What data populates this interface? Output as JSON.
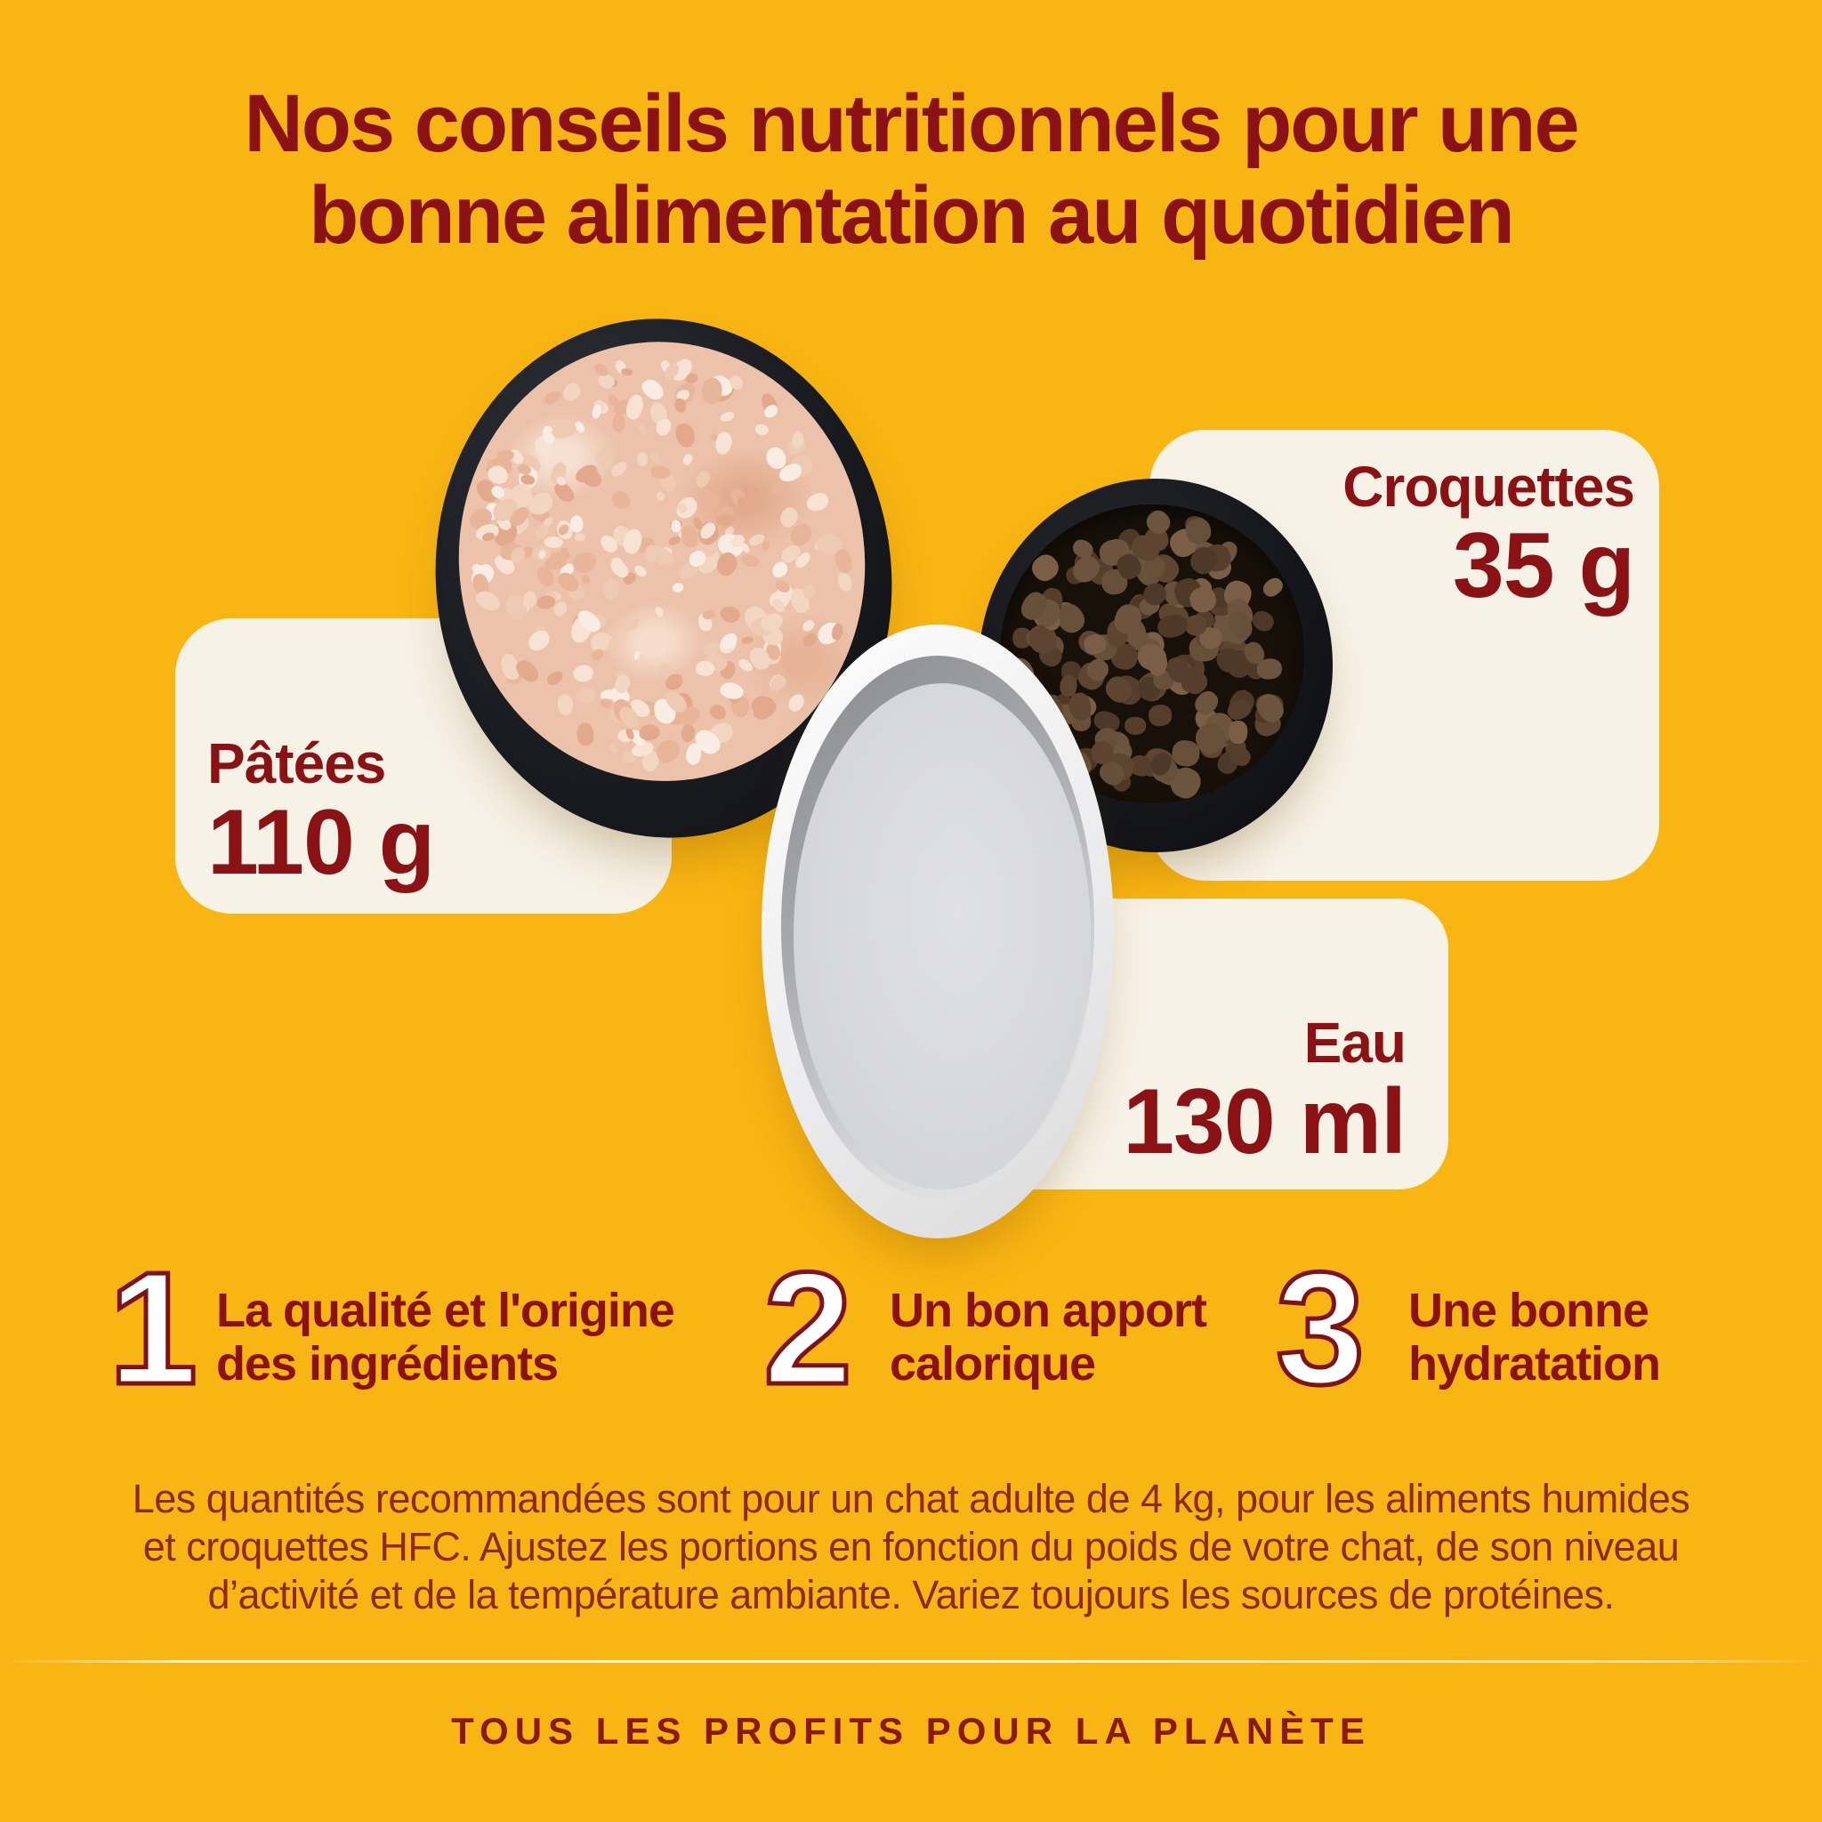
{
  "colors": {
    "background": "#f9b513",
    "card": "#f7f2e6",
    "heading_red": "#8a1215",
    "body_red": "#8e2a1b",
    "number_outline": "#7d1316",
    "number_fill": "#ffffff"
  },
  "title": {
    "line1": "Nos conseils nutritionnels pour une",
    "line2": "bonne alimentation au quotidien"
  },
  "portions": [
    {
      "id": "pate",
      "label": "Pâtées",
      "amount": "110 g"
    },
    {
      "id": "croquettes",
      "label": "Croquettes",
      "amount": "35 g"
    },
    {
      "id": "eau",
      "label": "Eau",
      "amount": "130 ml"
    }
  ],
  "tips": [
    {
      "number": "1",
      "line1": "La qualité et l'origine",
      "line2": "des ingrédients"
    },
    {
      "number": "2",
      "line1": "Un bon apport",
      "line2": "calorique"
    },
    {
      "number": "3",
      "line1": "Une bonne",
      "line2": "hydratation"
    }
  ],
  "disclaimer": {
    "lines": [
      "Les quantités recommandées sont pour un chat adulte de 4 kg, pour les aliments humides",
      "et croquettes HFC. Ajustez les portions en fonction du poids de votre chat, de son niveau",
      "d’activité et de la température ambiante. Variez toujours les sources de protéines."
    ]
  },
  "footer": {
    "tagline": "TOUS LES PROFITS POUR LA PLANÈTE"
  }
}
